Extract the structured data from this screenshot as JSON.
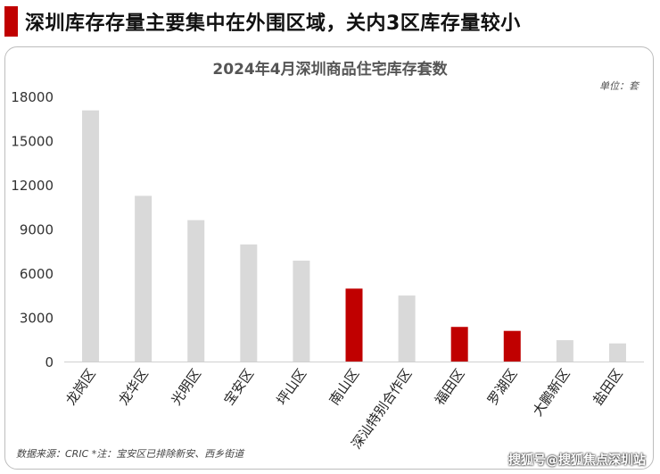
{
  "headline": "深圳库存存量主要集中在外围区域，关内3区库存量较小",
  "unit_label": "单位：套",
  "source_note": "数据来源：CRIC *注：宝安区已排除新安、西乡街道",
  "watermark": "搜狐号@搜狐焦点深圳站",
  "colors": {
    "accent": "#c00000",
    "gray_bar": "#d9d9d9"
  },
  "chart_data": {
    "type": "bar",
    "title": "2024年4月深圳商品住宅库存套数",
    "xlabel": "",
    "ylabel": "",
    "ylim": [
      0,
      18000
    ],
    "yticks": [
      0,
      3000,
      6000,
      9000,
      12000,
      15000,
      18000
    ],
    "grid": false,
    "categories": [
      "龙岗区",
      "龙华区",
      "光明区",
      "宝安区",
      "坪山区",
      "南山区",
      "深汕特别合作区",
      "福田区",
      "罗湖区",
      "大鹏新区",
      "盐田区"
    ],
    "values": [
      17050,
      11250,
      9600,
      7950,
      6850,
      4950,
      4480,
      2350,
      2080,
      1450,
      1230
    ],
    "highlighted": [
      false,
      false,
      false,
      false,
      false,
      true,
      false,
      true,
      true,
      false,
      false
    ]
  }
}
